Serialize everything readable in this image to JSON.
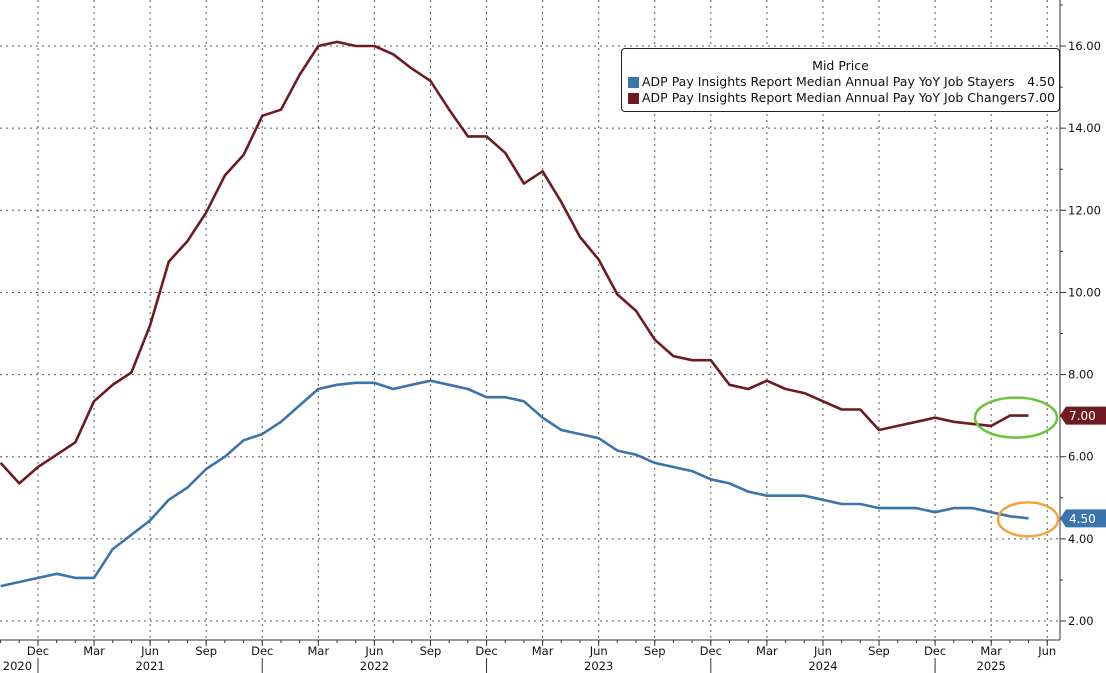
{
  "chart_data": {
    "type": "line",
    "title": "Mid Price",
    "start_month": "2020-10",
    "x_month_labels": [
      "Dec",
      "Mar",
      "Jun",
      "Sep",
      "Dec",
      "Mar",
      "Jun",
      "Sep",
      "Dec",
      "Mar",
      "Jun",
      "Sep",
      "Dec",
      "Mar",
      "Jun",
      "Sep",
      "Dec",
      "Mar",
      "Jun"
    ],
    "x_month_label_index": [
      2,
      5,
      8,
      11,
      14,
      17,
      20,
      23,
      26,
      29,
      32,
      35,
      38,
      41,
      44,
      47,
      50,
      53,
      56
    ],
    "x_year_labels": [
      "2020",
      "2021",
      "2022",
      "2023",
      "2024",
      "2025"
    ],
    "x_year_label_index": [
      0.9,
      8,
      20,
      32,
      44,
      53
    ],
    "ylim": [
      2,
      17
    ],
    "y_ticks": [
      "2.00",
      "4.00",
      "6.00",
      "8.00",
      "10.00",
      "12.00",
      "14.00",
      "16.00"
    ],
    "y_tick_values": [
      2,
      4,
      6,
      8,
      10,
      12,
      14,
      16
    ],
    "grid": true,
    "legend_position": "top-right",
    "series": [
      {
        "name": "ADP Pay Insights Report Median Annual Pay YoY Job Stayers",
        "last": "4.50",
        "color": "#3b73ad",
        "values": [
          2.85,
          2.95,
          3.05,
          3.15,
          3.05,
          3.05,
          3.75,
          4.1,
          4.45,
          4.95,
          5.25,
          5.7,
          6.0,
          6.4,
          6.55,
          6.85,
          7.25,
          7.65,
          7.75,
          7.8,
          7.8,
          7.65,
          7.75,
          7.85,
          7.75,
          7.65,
          7.45,
          7.45,
          7.35,
          6.95,
          6.65,
          6.55,
          6.45,
          6.15,
          6.05,
          5.85,
          5.75,
          5.65,
          5.45,
          5.35,
          5.15,
          5.05,
          5.05,
          5.05,
          4.95,
          4.85,
          4.85,
          4.75,
          4.75,
          4.75,
          4.65,
          4.75,
          4.75,
          4.65,
          4.55,
          4.5
        ]
      },
      {
        "name": "ADP Pay Insights Report Median Annual Pay YoY Job Changers",
        "last": "7.00",
        "color": "#6e1a20",
        "values": [
          5.85,
          5.35,
          5.75,
          6.05,
          6.35,
          7.35,
          7.75,
          8.05,
          9.2,
          10.75,
          11.25,
          11.95,
          12.85,
          13.35,
          14.3,
          14.45,
          15.3,
          16.0,
          16.1,
          16.0,
          16.0,
          15.8,
          15.45,
          15.15,
          14.45,
          13.8,
          13.8,
          13.4,
          12.65,
          12.95,
          12.2,
          11.35,
          10.8,
          9.95,
          9.55,
          8.85,
          8.45,
          8.35,
          8.35,
          7.75,
          7.65,
          7.85,
          7.65,
          7.55,
          7.35,
          7.15,
          7.15,
          6.65,
          6.75,
          6.85,
          6.95,
          6.85,
          6.8,
          6.75,
          7.0,
          7.0
        ]
      }
    ]
  }
}
